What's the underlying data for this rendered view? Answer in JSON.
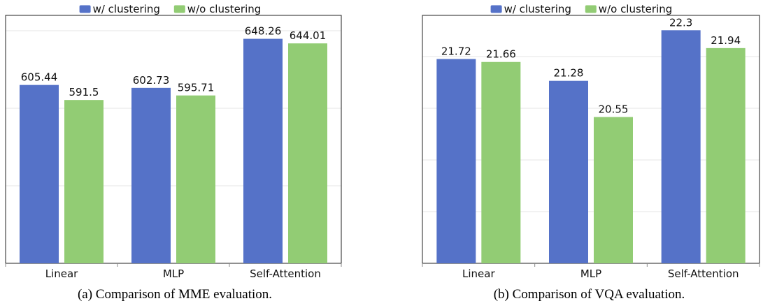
{
  "chart_data": [
    {
      "type": "bar",
      "categories": [
        "Linear",
        "MLP",
        "Self-Attention"
      ],
      "series": [
        {
          "name": "w/ clustering",
          "values": [
            605.44,
            602.73,
            648.26
          ]
        },
        {
          "name": "w/o clustering",
          "values": [
            591.5,
            595.71,
            644.01
          ]
        }
      ],
      "ylim": [
        440,
        670
      ],
      "grid": true,
      "legend": "top-center",
      "caption": "(a) Comparison of MME evaluation."
    },
    {
      "type": "bar",
      "categories": [
        "Linear",
        "MLP",
        "Self-Attention"
      ],
      "series": [
        {
          "name": "w/ clustering",
          "values": [
            21.72,
            21.28,
            22.3
          ]
        },
        {
          "name": "w/o clustering",
          "values": [
            21.66,
            20.55,
            21.94
          ]
        }
      ],
      "ylim": [
        17.6,
        22.6
      ],
      "grid": true,
      "legend": "top-center",
      "caption": "(b) Comparison of VQA evaluation."
    }
  ],
  "colors": {
    "series": [
      "#5572c8",
      "#92cc74"
    ],
    "grid": "#e6e6e6",
    "axis": "#888888",
    "frame": "#222222",
    "text": "#111111"
  }
}
